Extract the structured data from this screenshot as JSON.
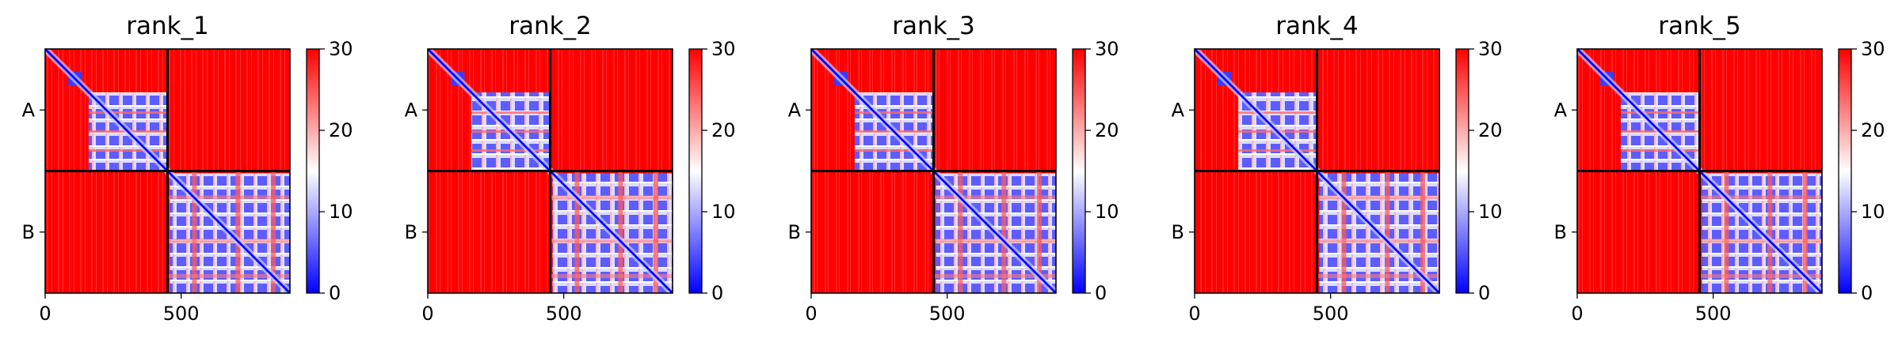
{
  "chart_data": [
    {
      "type": "heatmap",
      "title": "rank_1",
      "chains": [
        "A",
        "B"
      ],
      "chain_boundary": 450,
      "length": 900,
      "xticks": [
        0,
        500
      ],
      "color_range": [
        0,
        30
      ],
      "colorbar_ticks": [
        0,
        10,
        20,
        30
      ],
      "colormap": [
        "#0000ff",
        "#ffffff",
        "#ff0000"
      ]
    },
    {
      "type": "heatmap",
      "title": "rank_2",
      "chains": [
        "A",
        "B"
      ],
      "chain_boundary": 450,
      "length": 900,
      "xticks": [
        0,
        500
      ],
      "color_range": [
        0,
        30
      ],
      "colorbar_ticks": [
        0,
        10,
        20,
        30
      ],
      "colormap": [
        "#0000ff",
        "#ffffff",
        "#ff0000"
      ]
    },
    {
      "type": "heatmap",
      "title": "rank_3",
      "chains": [
        "A",
        "B"
      ],
      "chain_boundary": 450,
      "length": 900,
      "xticks": [
        0,
        500
      ],
      "color_range": [
        0,
        30
      ],
      "colorbar_ticks": [
        0,
        10,
        20,
        30
      ],
      "colormap": [
        "#0000ff",
        "#ffffff",
        "#ff0000"
      ]
    },
    {
      "type": "heatmap",
      "title": "rank_4",
      "chains": [
        "A",
        "B"
      ],
      "chain_boundary": 450,
      "length": 900,
      "xticks": [
        0,
        500
      ],
      "color_range": [
        0,
        30
      ],
      "colorbar_ticks": [
        0,
        10,
        20,
        30
      ],
      "colormap": [
        "#0000ff",
        "#ffffff",
        "#ff0000"
      ]
    },
    {
      "type": "heatmap",
      "title": "rank_5",
      "chains": [
        "A",
        "B"
      ],
      "chain_boundary": 450,
      "length": 900,
      "xticks": [
        0,
        500
      ],
      "color_range": [
        0,
        30
      ],
      "colorbar_ticks": [
        0,
        10,
        20,
        30
      ],
      "colormap": [
        "#0000ff",
        "#ffffff",
        "#ff0000"
      ]
    }
  ]
}
